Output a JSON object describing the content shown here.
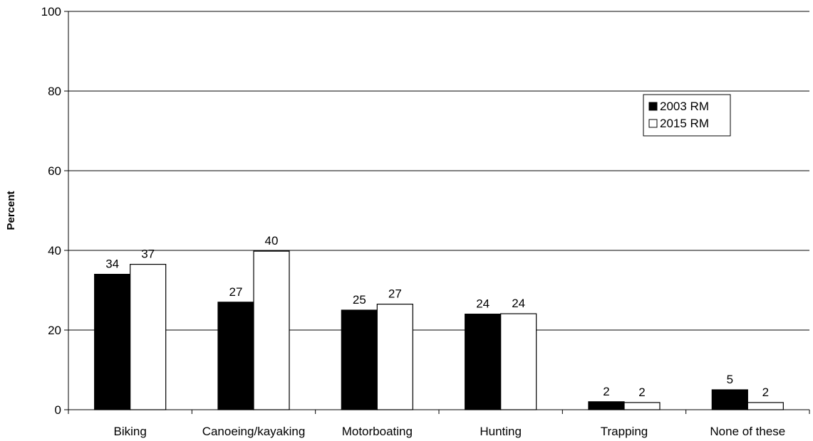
{
  "chart_data": {
    "type": "bar",
    "title": "",
    "xlabel": "",
    "ylabel": "Percent",
    "ylim": [
      0,
      100
    ],
    "yticks": [
      "0",
      "20",
      "40",
      "60",
      "80",
      "100"
    ],
    "grid": true,
    "legend_position": "top-right",
    "categories": [
      "Biking",
      "Canoeing/kayaking",
      "Motorboating",
      "Hunting",
      "Trapping",
      "None of these"
    ],
    "series": [
      {
        "name": "2003 RM",
        "values": [
          34,
          27,
          25,
          24,
          2,
          5
        ],
        "labels": [
          "34",
          "27",
          "25",
          "24",
          "2",
          "5"
        ],
        "color": "#000000"
      },
      {
        "name": "2015 RM",
        "values": [
          36.5,
          39.8,
          26.5,
          24.1,
          1.8,
          1.8
        ],
        "labels": [
          "37",
          "40",
          "27",
          "24",
          "2",
          "2"
        ],
        "color": "#ffffff"
      }
    ]
  }
}
